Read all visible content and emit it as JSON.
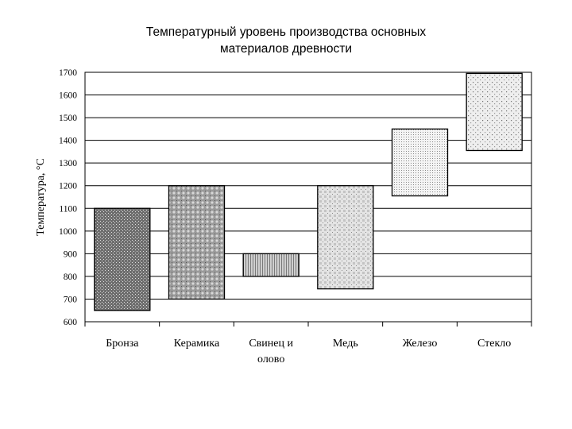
{
  "chart_data": {
    "type": "floating-bar",
    "title_lines": [
      "Температурный уровень производства основных",
      "материалов древности"
    ],
    "ylabel": "Температура, °С",
    "xlabel": "",
    "ylim": [
      600,
      1700
    ],
    "yticks": [
      600,
      700,
      800,
      900,
      1000,
      1100,
      1200,
      1300,
      1400,
      1500,
      1600,
      1700
    ],
    "grid": true,
    "categories": [
      [
        "Бронза"
      ],
      [
        "Керамика"
      ],
      [
        "Свинец и",
        "олово"
      ],
      [
        "Медь"
      ],
      [
        "Железо"
      ],
      [
        "Стекло"
      ]
    ],
    "ranges": [
      {
        "low": 650,
        "high": 1100,
        "pattern": "bronze"
      },
      {
        "low": 700,
        "high": 1200,
        "pattern": "ceramic"
      },
      {
        "low": 800,
        "high": 900,
        "pattern": "lead"
      },
      {
        "low": 745,
        "high": 1200,
        "pattern": "copper"
      },
      {
        "low": 1155,
        "high": 1450,
        "pattern": "iron"
      },
      {
        "low": 1355,
        "high": 1695,
        "pattern": "glass"
      }
    ]
  }
}
